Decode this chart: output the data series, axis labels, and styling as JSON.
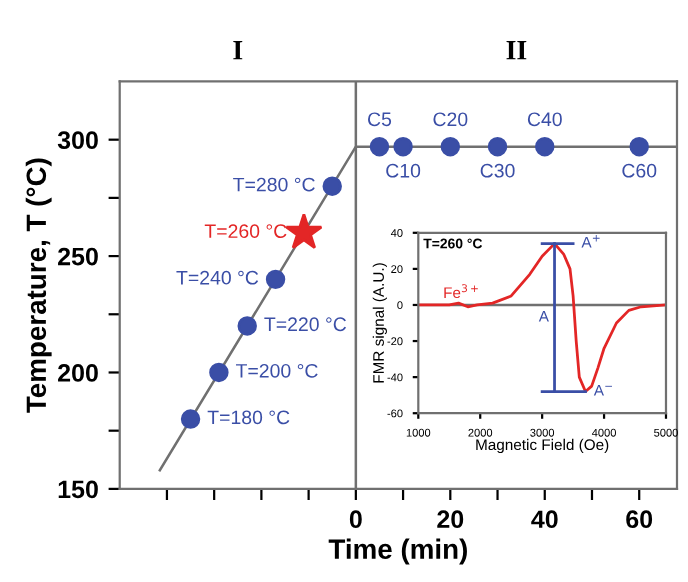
{
  "chart_data": [
    {
      "type": "scatter",
      "xlabel": "Time (min)",
      "ylabel": "Temperature, T (°C)",
      "xlim": [
        -50,
        68
      ],
      "ylim": [
        150,
        325
      ],
      "xticks": [
        {
          "value": -40,
          "label": null
        },
        {
          "value": -30,
          "label": null
        },
        {
          "value": -20,
          "label": null
        },
        {
          "value": -10,
          "label": null
        },
        0,
        {
          "value": 10,
          "label": null
        },
        20,
        {
          "value": 30,
          "label": null
        },
        40,
        {
          "value": 50,
          "label": null
        },
        60
      ],
      "yticks": [
        150,
        {
          "value": 175,
          "label": null
        },
        200,
        {
          "value": 225,
          "label": null
        },
        250,
        {
          "value": 275,
          "label": null
        },
        300
      ],
      "ref_lines": [
        {
          "axis": "x",
          "value": 0,
          "color": "#707070"
        }
      ],
      "annotations": [
        "I",
        "II"
      ],
      "marker": "circle",
      "grid": false,
      "legend": false,
      "series": [
        {
          "type": "line",
          "color": "#707070",
          "marker": "none",
          "x": [
            -41.5,
            0,
            68
          ],
          "values": [
            158,
            297,
            297
          ]
        },
        {
          "color": "#3a4ea6",
          "x": [
            -35,
            -29,
            -23,
            -17,
            -5
          ],
          "values": [
            180,
            200,
            220,
            240,
            280
          ],
          "value_labels": [
            "T=180 °C",
            "T=200 °C",
            "T=220 °C",
            "T=240 °C",
            "T=280 °C"
          ]
        },
        {
          "color": "#e32626",
          "marker": "star",
          "x": [
            -11
          ],
          "values": [
            260
          ],
          "value_labels": [
            "T=260 °C"
          ]
        },
        {
          "color": "#3a4ea6",
          "x": [
            5,
            10,
            20,
            30,
            40,
            60
          ],
          "values": [
            297,
            297,
            297,
            297,
            297,
            297
          ],
          "value_labels": [
            "C5",
            "C10",
            "C20",
            "C30",
            "C40",
            "C60"
          ]
        }
      ]
    },
    {
      "type": "line",
      "xlabel": "Magnetic Field (Oe)",
      "ylabel": "FMR signal (A.U.)",
      "annotations": [
        "T=260 °C"
      ],
      "xlim": [
        1000,
        5000
      ],
      "ylim": [
        -60,
        40
      ],
      "xticks": [
        1000,
        2000,
        3000,
        4000,
        5000
      ],
      "yticks": [
        -60,
        -40,
        -20,
        0,
        20,
        40
      ],
      "ref_lines": [
        {
          "axis": "y",
          "value": 0,
          "color": "#707070"
        }
      ],
      "grid": false,
      "legend": false,
      "series": [
        {
          "color": "#e32626",
          "x": [
            1000,
            1500,
            1650,
            1800,
            1950,
            2200,
            2500,
            2800,
            3000,
            3200,
            3350,
            3450,
            3500,
            3550,
            3600,
            3700,
            3800,
            3900,
            4000,
            4200,
            4400,
            4600,
            5000
          ],
          "values": [
            0,
            0,
            1,
            -1,
            0,
            1,
            5,
            17,
            27,
            34,
            28,
            20,
            5,
            -20,
            -40,
            -48,
            -45,
            -35,
            -24,
            -10,
            -3,
            -1,
            0
          ],
          "value_labels": [
            null,
            null,
            null,
            "Fe$^{3+}$",
            null,
            null,
            null,
            null,
            null,
            null,
            null,
            null,
            null,
            null,
            null,
            null,
            null,
            null,
            null,
            null,
            null,
            null,
            null
          ]
        },
        {
          "color": "#3a4ea6",
          "x": [
            3000,
            3500
          ],
          "values": [
            34,
            34
          ],
          "value_labels": [
            null,
            "A$^{+}$"
          ]
        },
        {
          "color": "#3a4ea6",
          "x": [
            3200,
            3200,
            3200
          ],
          "values": [
            -48,
            -7,
            34
          ],
          "value_labels": [
            null,
            "A",
            null
          ]
        },
        {
          "color": "#3a4ea6",
          "x": [
            3000,
            3700
          ],
          "values": [
            -48,
            -48
          ],
          "value_labels": [
            null,
            "A$^{−}$"
          ]
        }
      ]
    }
  ]
}
